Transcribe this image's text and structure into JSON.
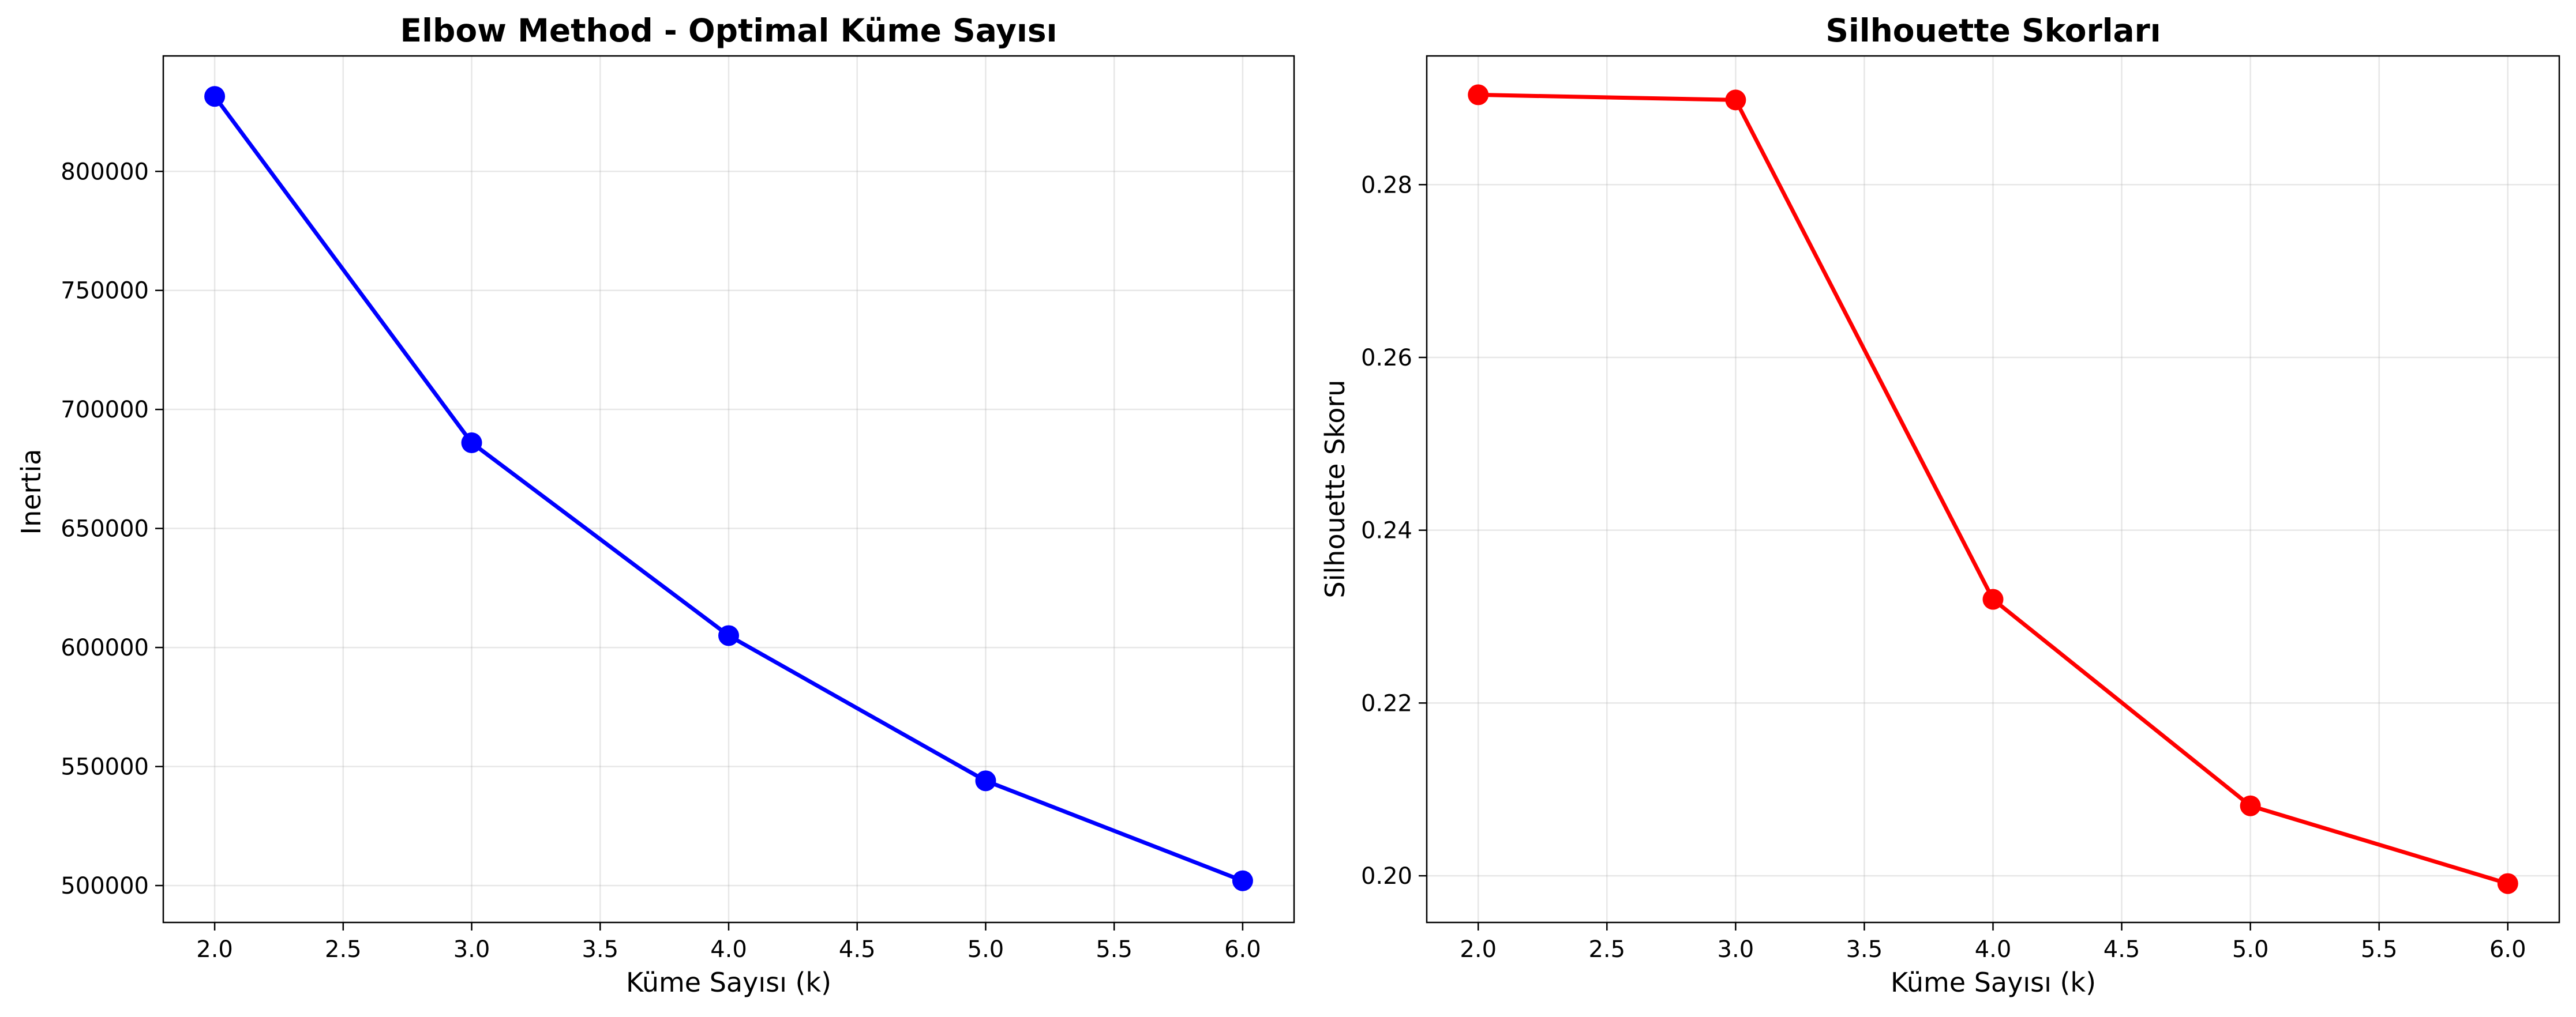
{
  "chart_data": [
    {
      "type": "line",
      "title": "Elbow Method - Optimal Küme Sayısı",
      "xlabel": "Küme Sayısı (k)",
      "ylabel": "Inertia",
      "x": [
        2,
        3,
        4,
        5,
        6
      ],
      "series": [
        {
          "values": [
            831500,
            686000,
            605000,
            544000,
            502000
          ],
          "color": "#0000ff"
        }
      ],
      "xlim": [
        1.8,
        6.2
      ],
      "ylim": [
        484500,
        848500
      ],
      "xticks": [
        2.0,
        2.5,
        3.0,
        3.5,
        4.0,
        4.5,
        5.0,
        5.5,
        6.0
      ],
      "xtick_labels": [
        "2.0",
        "2.5",
        "3.0",
        "3.5",
        "4.0",
        "4.5",
        "5.0",
        "5.5",
        "6.0"
      ],
      "yticks": [
        500000,
        550000,
        600000,
        650000,
        700000,
        750000,
        800000
      ],
      "ytick_labels": [
        "500000",
        "550000",
        "600000",
        "650000",
        "700000",
        "750000",
        "800000"
      ],
      "grid": true,
      "marker": "circle"
    },
    {
      "type": "line",
      "title": "Silhouette Skorları",
      "xlabel": "Küme Sayısı (k)",
      "ylabel": "Silhouette Skoru",
      "x": [
        2,
        3,
        4,
        5,
        6
      ],
      "series": [
        {
          "values": [
            0.2904,
            0.2898,
            0.232,
            0.2081,
            0.1991
          ],
          "color": "#ff0000"
        }
      ],
      "xlim": [
        1.8,
        6.2
      ],
      "ylim": [
        0.1946,
        0.2949
      ],
      "xticks": [
        2.0,
        2.5,
        3.0,
        3.5,
        4.0,
        4.5,
        5.0,
        5.5,
        6.0
      ],
      "xtick_labels": [
        "2.0",
        "2.5",
        "3.0",
        "3.5",
        "4.0",
        "4.5",
        "5.0",
        "5.5",
        "6.0"
      ],
      "yticks": [
        0.2,
        0.22,
        0.24,
        0.26,
        0.28
      ],
      "ytick_labels": [
        "0.20",
        "0.22",
        "0.24",
        "0.26",
        "0.28"
      ],
      "grid": true,
      "marker": "circle"
    }
  ]
}
